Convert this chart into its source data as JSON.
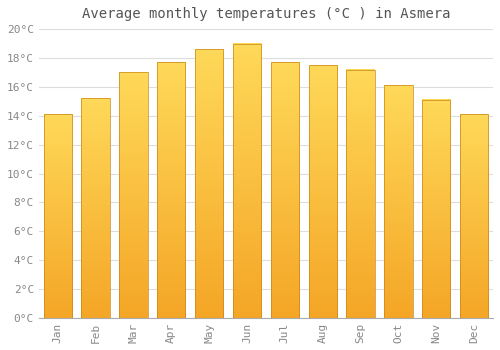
{
  "title": "Average monthly temperatures (°C ) in Asmera",
  "months": [
    "Jan",
    "Feb",
    "Mar",
    "Apr",
    "May",
    "Jun",
    "Jul",
    "Aug",
    "Sep",
    "Oct",
    "Nov",
    "Dec"
  ],
  "temperatures": [
    14.1,
    15.2,
    17.0,
    17.7,
    18.6,
    19.0,
    17.7,
    17.5,
    17.2,
    16.1,
    15.1,
    14.1
  ],
  "bar_color_top": "#F5A623",
  "bar_color_bottom": "#FFD060",
  "bar_edge_color": "#C8861A",
  "ylim": [
    0,
    20
  ],
  "ytick_step": 2,
  "background_color": "#ffffff",
  "grid_color": "#dddddd",
  "title_fontsize": 10,
  "tick_fontsize": 8,
  "font_family": "monospace",
  "title_color": "#555555",
  "tick_color": "#888888"
}
